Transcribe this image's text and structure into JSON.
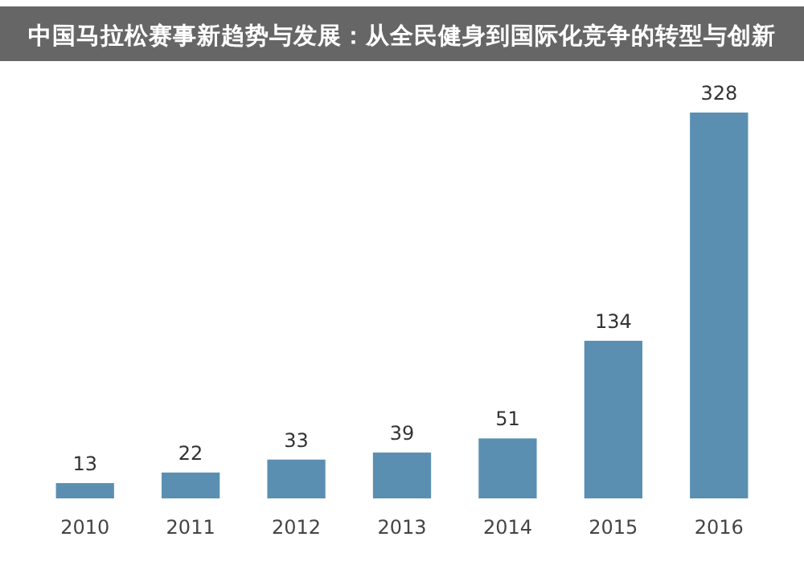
{
  "chart_data": {
    "type": "bar",
    "title": "中国马拉松赛事新趋势与发展：从全民健身到国际化竞争的转型与创新",
    "categories": [
      "2010",
      "2011",
      "2012",
      "2013",
      "2014",
      "2015",
      "2016"
    ],
    "values": [
      13,
      22,
      33,
      39,
      51,
      134,
      328
    ],
    "color": "#5b8fb2",
    "data_labels": true
  }
}
